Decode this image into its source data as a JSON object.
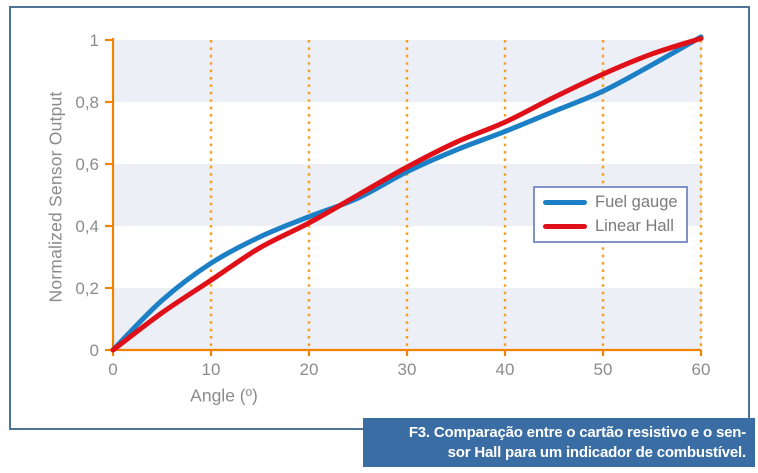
{
  "caption": {
    "line1": "F3. Comparação entre o cartão resistivo e o sen-",
    "line2": "sor Hall para um indicador de combustível."
  },
  "chart_data": {
    "type": "line",
    "title": "",
    "xlabel": "Angle (º)",
    "ylabel": "Normalized Sensor Output",
    "xlim": [
      0,
      60
    ],
    "ylim": [
      0,
      1
    ],
    "x_ticks": [
      0,
      10,
      20,
      30,
      40,
      50,
      60
    ],
    "x_tick_labels": [
      "0",
      "10",
      "20",
      "30",
      "40",
      "50",
      "60"
    ],
    "y_ticks": [
      0,
      0.2,
      0.4,
      0.6,
      0.8,
      1
    ],
    "y_tick_labels": [
      "0",
      "0,2",
      "0,4",
      "0,6",
      "0,8",
      "1"
    ],
    "grid": "vertical dotted orange gridlines at each 10°",
    "legend_position": "right-middle inside plot",
    "shaded_bands": [
      [
        0,
        0.2
      ],
      [
        0.4,
        0.6
      ],
      [
        0.8,
        1.0
      ]
    ],
    "x": [
      0,
      5,
      10,
      15,
      20,
      25,
      30,
      35,
      40,
      45,
      50,
      55,
      60
    ],
    "series": [
      {
        "name": "Fuel gauge",
        "color": "#1b80c6",
        "values": [
          0,
          0.16,
          0.28,
          0.365,
          0.43,
          0.49,
          0.575,
          0.645,
          0.705,
          0.77,
          0.835,
          0.92,
          1.01
        ]
      },
      {
        "name": "Linear Hall",
        "color": "#e01019",
        "values": [
          0,
          0.12,
          0.225,
          0.33,
          0.41,
          0.5,
          0.59,
          0.67,
          0.735,
          0.815,
          0.89,
          0.955,
          1.005
        ]
      }
    ],
    "colors": {
      "axis": "#f08300",
      "grid": "#f2a125",
      "band": "#edeff6",
      "tick_text": "#8c8c8c",
      "frame_border": "#4d7396",
      "legend_border": "#8192c8",
      "caption_bg": "#3a6da3"
    }
  }
}
